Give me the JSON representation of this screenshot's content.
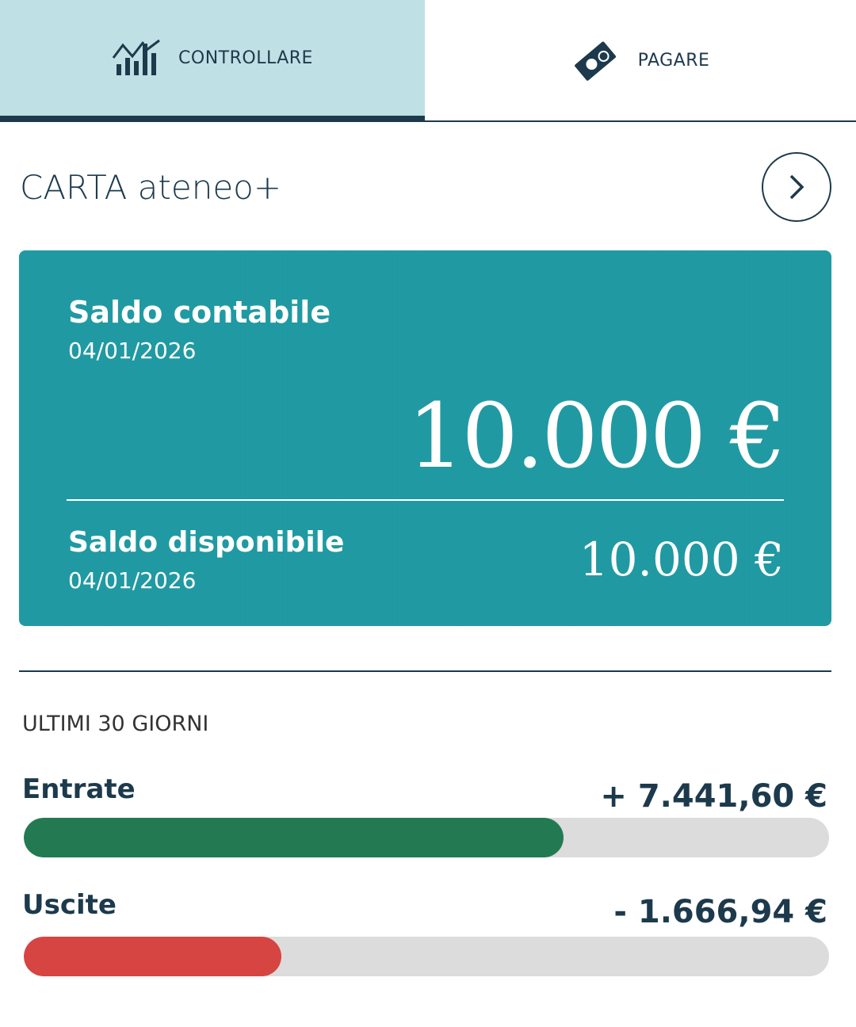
{
  "tabs": [
    {
      "label": "CONTROLLARE",
      "icon": "chart-growth-icon",
      "active": true
    },
    {
      "label": "PAGARE",
      "icon": "money-euro-icon",
      "active": false
    }
  ],
  "title": "CARTA ateneo+",
  "card": {
    "saldo_contabile_label": "Saldo contabile",
    "saldo_contabile_date": "04/01/2026",
    "saldo_contabile_value": "10.000 €",
    "saldo_disponibile_label": "Saldo disponibile",
    "saldo_disponibile_date": "04/01/2026",
    "saldo_disponibile_value": "10.000 €",
    "color": "#1f98a2"
  },
  "period": {
    "label": "ULTIMI 30 GIORNI",
    "entrate": {
      "label": "Entrate",
      "value": "+ 7.441,60 €",
      "fill": 0.67,
      "color": "#237a52"
    },
    "uscite": {
      "label": "Uscite",
      "value": "- 1.666,94 €",
      "fill": 0.32,
      "color": "#d64541"
    }
  }
}
